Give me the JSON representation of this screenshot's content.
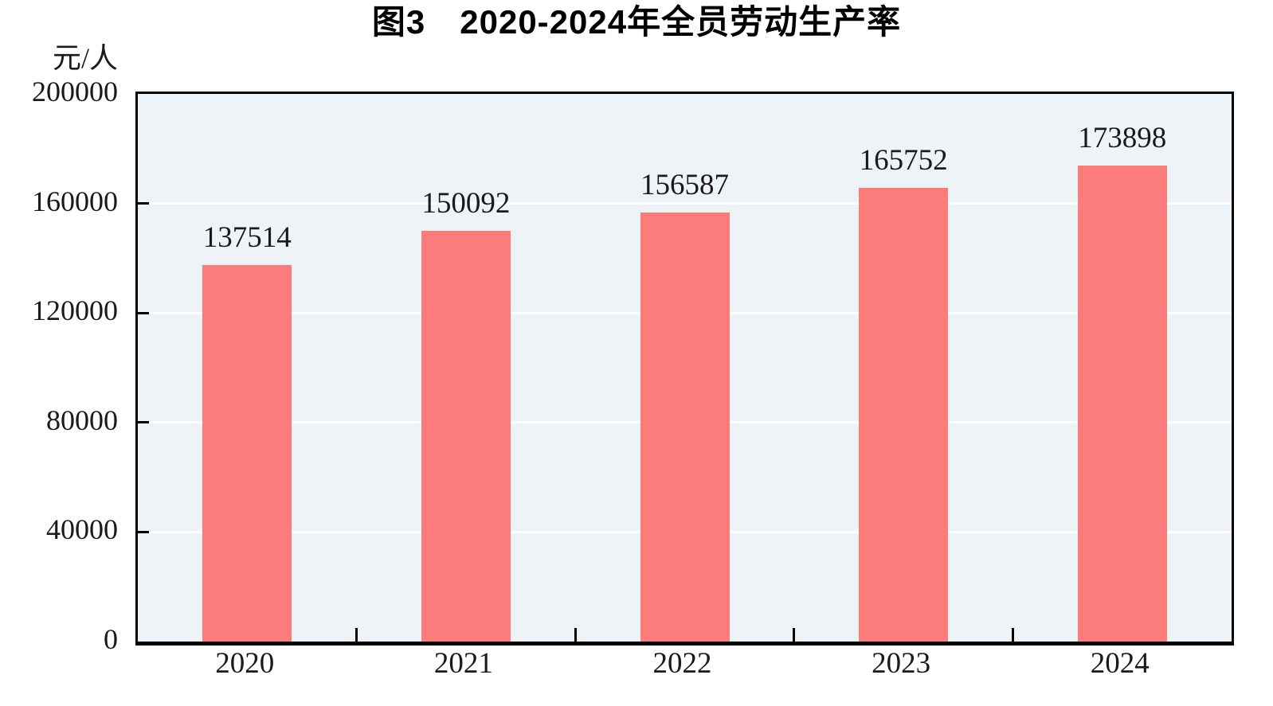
{
  "chart_data": {
    "type": "bar",
    "title": "图3　2020-2024年全员劳动生产率",
    "unit_label": "元/人",
    "categories": [
      "2020",
      "2021",
      "2022",
      "2023",
      "2024"
    ],
    "values": [
      137514,
      150092,
      156587,
      165752,
      173898
    ],
    "xlabel": "",
    "ylabel": "元/人",
    "ylim": [
      0,
      200000
    ],
    "ytick_interval": 40000,
    "ytick_labels": [
      "0",
      "40000",
      "80000",
      "120000",
      "160000",
      "200000"
    ],
    "grid": "horizontal",
    "legend": "none",
    "colors": {
      "bar": "#fc7c7b",
      "plot_background": "#edf3f7",
      "gridline": "#ffffff",
      "axis_line": "#000000",
      "tick_text": "#1a1a1a",
      "title_text": "#000000",
      "page_background": "#ffffff"
    }
  }
}
